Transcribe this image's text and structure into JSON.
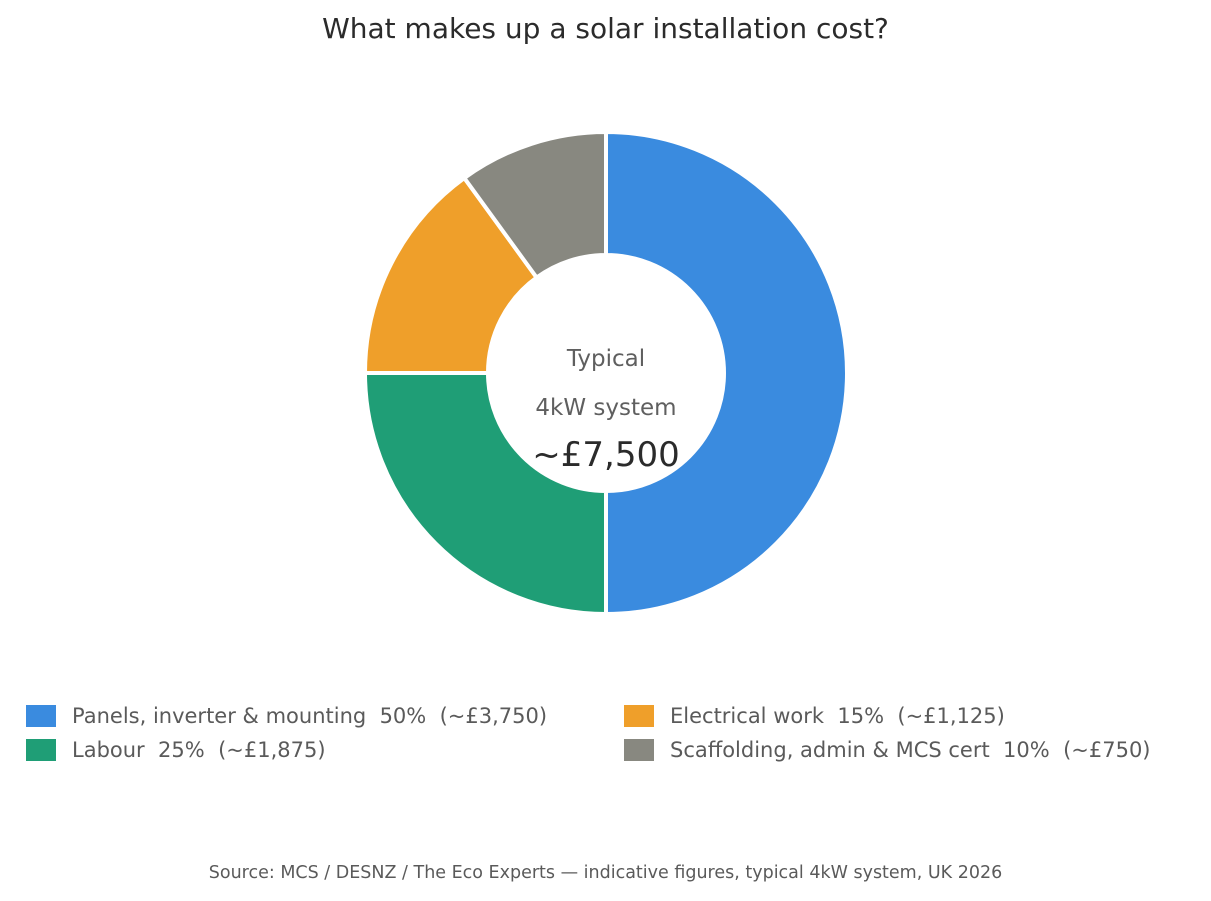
{
  "chart_data": {
    "type": "pie",
    "title": "What makes up a solar installation cost?",
    "center_label_line1": "Typical",
    "center_label_line2": "4kW system",
    "center_value": "~£7,500",
    "slices": [
      {
        "name": "Panels, inverter & mounting",
        "value": 50,
        "cost": "~£3,750",
        "color": "#3a8bdf",
        "legend": "Panels, inverter & mounting  50%  (~£3,750)"
      },
      {
        "name": "Labour",
        "value": 25,
        "cost": "~£1,875",
        "color": "#1f9e76",
        "legend": "Labour  25%  (~£1,875)"
      },
      {
        "name": "Electrical work",
        "value": 15,
        "cost": "~£1,125",
        "color": "#ef9f2a",
        "legend": "Electrical work  15%  (~£1,125)"
      },
      {
        "name": "Scaffolding, admin & MCS cert",
        "value": 10,
        "cost": "~£750",
        "color": "#888880",
        "legend": "Scaffolding, admin & MCS cert  10%  (~£750)"
      }
    ],
    "legend_order": [
      0,
      2,
      1,
      3
    ],
    "legend_placement": "bottom",
    "source": "Source: MCS / DESNZ / The Eco Experts — indicative figures, typical 4kW system, UK 2026"
  }
}
